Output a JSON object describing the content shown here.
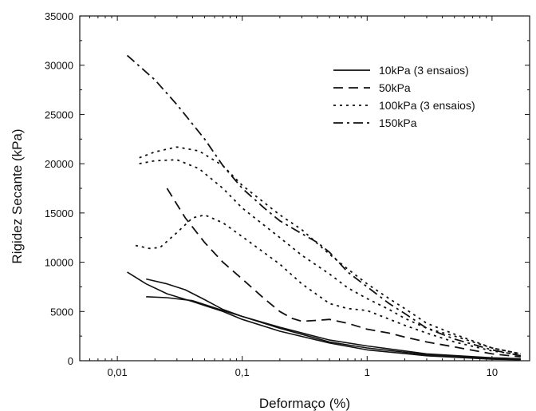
{
  "chart_data": {
    "type": "line",
    "xlabel": "Deformaço (%)",
    "ylabel": "Rigidez Secante (kPa)",
    "xscale": "log",
    "xlim": [
      0.005,
      20
    ],
    "ylim": [
      0,
      35000
    ],
    "x_ticks": [
      0.01,
      0.1,
      1,
      10
    ],
    "x_tick_labels": [
      "0,01",
      "0,1",
      "1",
      "10"
    ],
    "y_ticks": [
      0,
      5000,
      10000,
      15000,
      20000,
      25000,
      30000,
      35000
    ],
    "y_tick_labels": [
      "0",
      "5000",
      "10000",
      "15000",
      "20000",
      "25000",
      "30000",
      "35000"
    ],
    "legend_position": "top-right",
    "grid": false,
    "series": [
      {
        "name": "10kPa (3 ensaios)",
        "style": "solid",
        "x": [
          0.012,
          0.017,
          0.025,
          0.04,
          0.07,
          0.1,
          0.2,
          0.5,
          1,
          3,
          10,
          17
        ],
        "y": [
          9000,
          7800,
          6800,
          6000,
          5000,
          4200,
          3000,
          1800,
          1100,
          500,
          150,
          100
        ]
      },
      {
        "name": "",
        "style": "solid",
        "x": [
          0.017,
          0.025,
          0.035,
          0.05,
          0.07,
          0.1,
          0.2,
          0.5,
          1,
          3,
          10,
          17
        ],
        "y": [
          8300,
          7800,
          7200,
          6200,
          5200,
          4500,
          3300,
          1900,
          1300,
          600,
          220,
          150
        ]
      },
      {
        "name": "",
        "style": "solid",
        "x": [
          0.017,
          0.025,
          0.04,
          0.07,
          0.1,
          0.2,
          0.5,
          1,
          3,
          10,
          17
        ],
        "y": [
          6500,
          6400,
          6100,
          5100,
          4500,
          3400,
          2100,
          1500,
          700,
          300,
          200
        ]
      },
      {
        "name": "50kPa",
        "style": "dash",
        "x": [
          0.025,
          0.035,
          0.05,
          0.07,
          0.1,
          0.15,
          0.2,
          0.25,
          0.3,
          0.4,
          0.5,
          0.7,
          1,
          1.5,
          2,
          3,
          5,
          10,
          17
        ],
        "y": [
          17500,
          14500,
          12000,
          10000,
          8300,
          6300,
          5000,
          4300,
          4000,
          4100,
          4200,
          3800,
          3200,
          2800,
          2400,
          1900,
          1400,
          700,
          400
        ]
      },
      {
        "name": "100kPa (3 ensaios)",
        "style": "dot",
        "x": [
          0.015,
          0.02,
          0.03,
          0.045,
          0.07,
          0.1,
          0.2,
          0.3,
          0.5,
          0.7,
          1,
          1.5,
          2,
          3,
          5,
          10,
          17
        ],
        "y": [
          20600,
          21200,
          21700,
          21300,
          19800,
          17800,
          14800,
          13300,
          10800,
          9300,
          7800,
          6300,
          5300,
          3800,
          2700,
          1300,
          700
        ]
      },
      {
        "name": "",
        "style": "dot",
        "x": [
          0.015,
          0.02,
          0.03,
          0.045,
          0.07,
          0.1,
          0.2,
          0.3,
          0.5,
          0.7,
          1,
          1.5,
          2,
          3,
          5,
          10,
          17
        ],
        "y": [
          20000,
          20300,
          20400,
          19500,
          17500,
          15500,
          12500,
          10700,
          8800,
          7400,
          6300,
          5200,
          4300,
          3300,
          2500,
          1300,
          700
        ]
      },
      {
        "name": "",
        "style": "dot",
        "x": [
          0.014,
          0.018,
          0.022,
          0.03,
          0.04,
          0.05,
          0.07,
          0.1,
          0.2,
          0.3,
          0.5,
          0.7,
          1,
          2,
          3,
          5,
          10,
          17
        ],
        "y": [
          11700,
          11400,
          11500,
          13000,
          14500,
          14800,
          14000,
          12600,
          9800,
          7800,
          5800,
          5300,
          5100,
          3600,
          2800,
          1900,
          1000,
          600
        ]
      },
      {
        "name": "150kPa",
        "style": "dashdot",
        "x": [
          0.012,
          0.02,
          0.03,
          0.05,
          0.07,
          0.1,
          0.15,
          0.2,
          0.3,
          0.4,
          0.5,
          0.7,
          1,
          1.5,
          2,
          3,
          5,
          10,
          17
        ],
        "y": [
          31000,
          28500,
          26000,
          22500,
          19800,
          17500,
          15500,
          14200,
          12900,
          12000,
          11000,
          9000,
          7500,
          5800,
          4800,
          3300,
          2200,
          1100,
          500
        ]
      }
    ]
  }
}
